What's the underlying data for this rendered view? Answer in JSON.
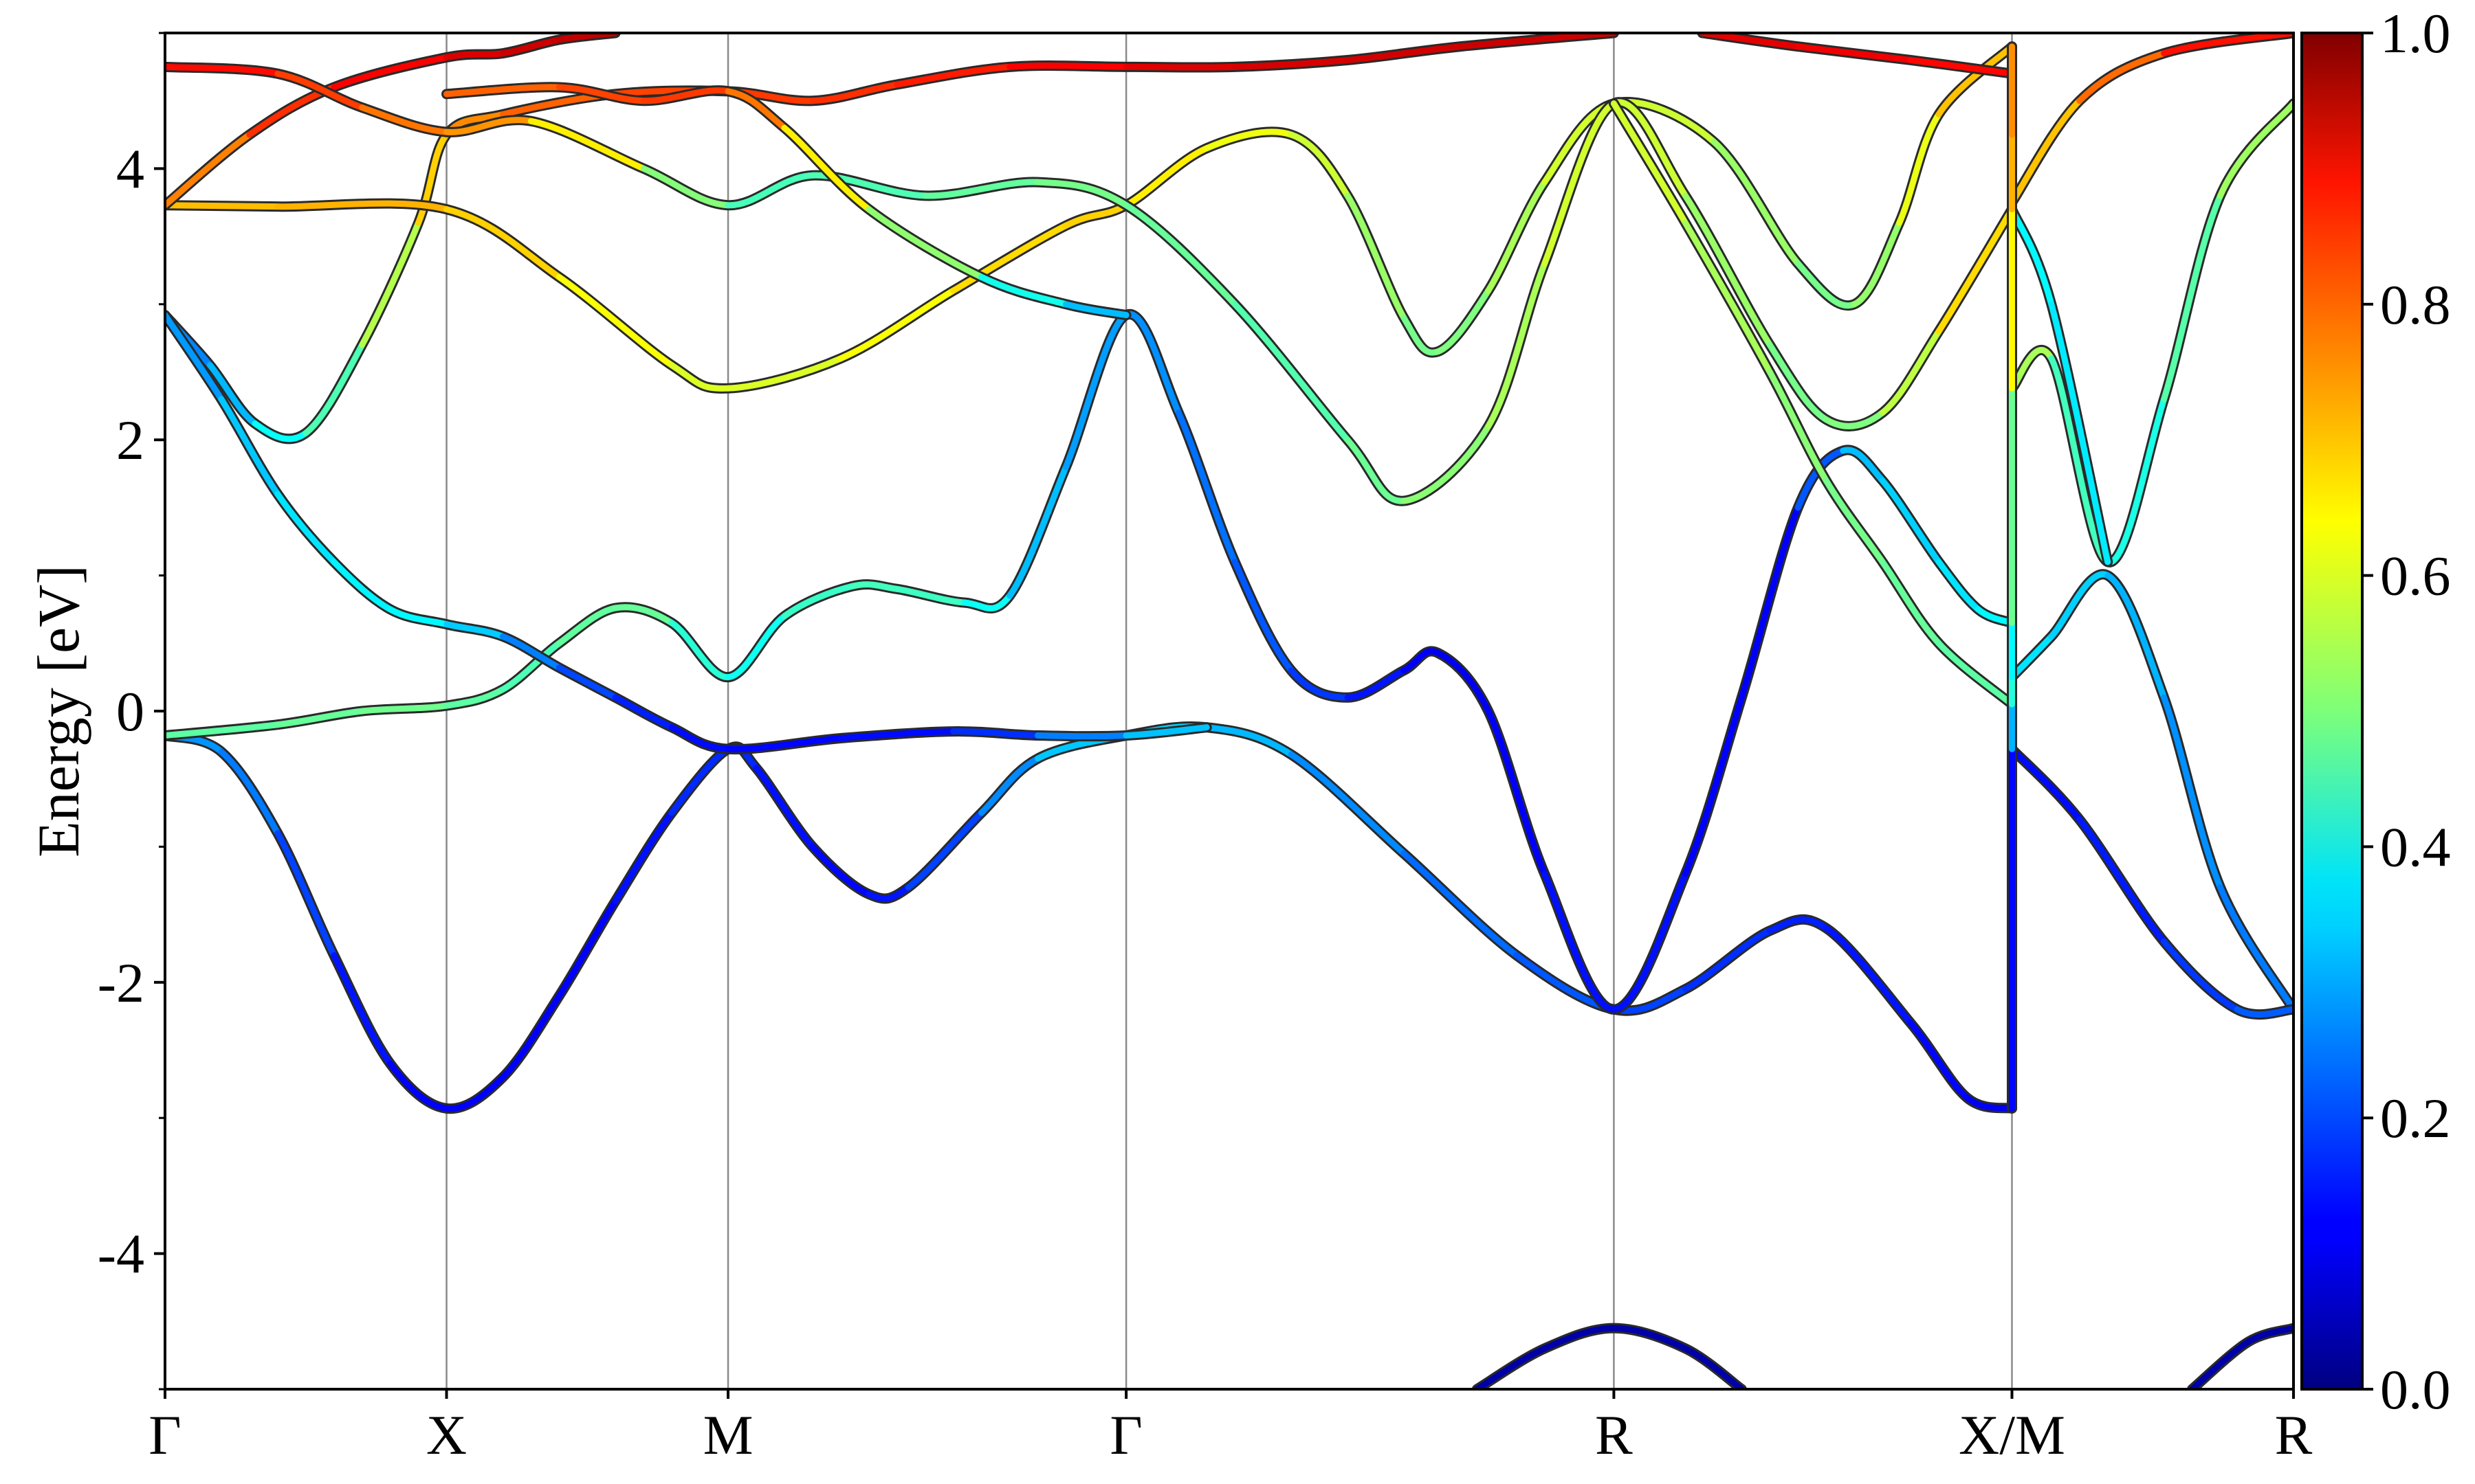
{
  "chart_data": {
    "type": "line",
    "title": "",
    "xlabel": "",
    "ylabel": "Energy [eV]",
    "ylim": [
      -5,
      5
    ],
    "y_ticks": [
      -4,
      -2,
      0,
      2,
      4
    ],
    "y_tick_labels": [
      "-4",
      "-2",
      "0",
      "2",
      "4"
    ],
    "k_points": [
      {
        "label": "Γ",
        "x": 0.0
      },
      {
        "label": "X",
        "x": 0.5
      },
      {
        "label": "M",
        "x": 1.0
      },
      {
        "label": "Γ",
        "x": 1.707
      },
      {
        "label": "R",
        "x": 2.573
      },
      {
        "label": "X/M",
        "x": 3.28
      },
      {
        "label": "R",
        "x": 3.78
      }
    ],
    "xlim": [
      0,
      3.78
    ],
    "colorbar": {
      "colormap": "jet",
      "range": [
        0.0,
        1.0
      ],
      "ticks": [
        0.0,
        0.2,
        0.4,
        0.6,
        0.8,
        1.0
      ],
      "tick_labels": [
        "0.0",
        "0.2",
        "0.4",
        "0.6",
        "0.8",
        "1.0"
      ]
    },
    "series": [
      {
        "points": [
          [
            0,
            -0.18
          ],
          [
            0.1,
            -0.3
          ],
          [
            0.2,
            -0.9
          ],
          [
            0.3,
            -1.8
          ],
          [
            0.4,
            -2.6
          ],
          [
            0.5,
            -2.93
          ],
          [
            0.6,
            -2.7
          ],
          [
            0.7,
            -2.1
          ],
          [
            0.8,
            -1.4
          ],
          [
            0.9,
            -0.75
          ],
          [
            1.0,
            -0.28
          ],
          [
            1.05,
            -0.42
          ],
          [
            1.15,
            -1.0
          ],
          [
            1.25,
            -1.35
          ],
          [
            1.32,
            -1.3
          ],
          [
            1.45,
            -0.75
          ],
          [
            1.55,
            -0.35
          ],
          [
            1.707,
            -0.18
          ],
          [
            1.85,
            -0.12
          ],
          [
            2.0,
            -0.32
          ],
          [
            2.2,
            -1.05
          ],
          [
            2.4,
            -1.8
          ],
          [
            2.573,
            -2.2
          ],
          [
            2.7,
            -2.05
          ],
          [
            2.85,
            -1.62
          ],
          [
            2.95,
            -1.6
          ],
          [
            3.1,
            -2.3
          ],
          [
            3.2,
            -2.85
          ],
          [
            3.28,
            -2.93
          ]
        ],
        "weight": [
          0.27,
          0.27,
          0.22,
          0.16,
          0.13,
          0.12,
          0.12,
          0.12,
          0.13,
          0.15,
          0.18,
          0.15,
          0.13,
          0.13,
          0.16,
          0.22,
          0.3,
          0.34,
          0.33,
          0.28,
          0.24,
          0.22,
          0.2,
          0.18,
          0.16,
          0.15,
          0.14,
          0.12,
          0.11
        ]
      },
      {
        "points": [
          [
            0,
            -0.18
          ],
          [
            0.2,
            -0.1
          ],
          [
            0.35,
            0.0
          ],
          [
            0.5,
            0.04
          ],
          [
            0.6,
            0.16
          ],
          [
            0.7,
            0.5
          ],
          [
            0.8,
            0.76
          ],
          [
            0.9,
            0.65
          ],
          [
            1.0,
            0.25
          ],
          [
            1.1,
            0.7
          ],
          [
            1.22,
            0.92
          ],
          [
            1.3,
            0.9
          ],
          [
            1.42,
            0.8
          ],
          [
            1.5,
            0.85
          ],
          [
            1.6,
            1.8
          ],
          [
            1.707,
            2.92
          ],
          [
            1.8,
            2.2
          ],
          [
            1.9,
            1.1
          ],
          [
            2.0,
            0.3
          ],
          [
            2.1,
            0.1
          ],
          [
            2.2,
            0.3
          ],
          [
            2.26,
            0.43
          ],
          [
            2.35,
            0.0
          ],
          [
            2.45,
            -1.2
          ],
          [
            2.573,
            -2.2
          ],
          [
            2.7,
            -1.2
          ],
          [
            2.8,
            0.1
          ],
          [
            2.9,
            1.5
          ],
          [
            2.98,
            1.92
          ],
          [
            3.05,
            1.7
          ],
          [
            3.15,
            1.1
          ],
          [
            3.22,
            0.75
          ],
          [
            3.28,
            0.65
          ]
        ],
        "weight": [
          0.46,
          0.47,
          0.48,
          0.49,
          0.44,
          0.46,
          0.48,
          0.47,
          0.36,
          0.42,
          0.44,
          0.44,
          0.43,
          0.34,
          0.28,
          0.28,
          0.25,
          0.22,
          0.2,
          0.16,
          0.13,
          0.11,
          0.11,
          0.13,
          0.15,
          0.13,
          0.12,
          0.12,
          0.3,
          0.32,
          0.34,
          0.36,
          0.38
        ]
      },
      {
        "points": [
          [
            0,
            2.92
          ],
          [
            0.08,
            2.55
          ],
          [
            0.16,
            2.12
          ],
          [
            0.25,
            2.05
          ],
          [
            0.35,
            2.7
          ],
          [
            0.45,
            3.6
          ],
          [
            0.5,
            4.25
          ],
          [
            0.6,
            4.4
          ],
          [
            0.8,
            4.55
          ],
          [
            1.0,
            4.57
          ],
          [
            1.15,
            4.5
          ],
          [
            1.3,
            4.62
          ],
          [
            1.5,
            4.75
          ],
          [
            1.707,
            4.75
          ],
          [
            1.9,
            4.75
          ],
          [
            2.1,
            4.8
          ],
          [
            2.3,
            4.9
          ],
          [
            2.573,
            5.0
          ]
        ],
        "weight": [
          0.24,
          0.27,
          0.34,
          0.42,
          0.48,
          0.62,
          0.72,
          0.76,
          0.8,
          0.82,
          0.82,
          0.84,
          0.86,
          0.9,
          0.91,
          0.92,
          0.92,
          0.93
        ]
      },
      {
        "points": [
          [
            0,
            2.92
          ],
          [
            0.1,
            2.3
          ],
          [
            0.2,
            1.6
          ],
          [
            0.3,
            1.1
          ],
          [
            0.4,
            0.75
          ],
          [
            0.5,
            0.64
          ],
          [
            0.6,
            0.55
          ],
          [
            0.7,
            0.32
          ],
          [
            0.8,
            0.1
          ],
          [
            0.9,
            -0.12
          ],
          [
            1.0,
            -0.28
          ],
          [
            1.2,
            -0.2
          ],
          [
            1.4,
            -0.15
          ],
          [
            1.55,
            -0.18
          ],
          [
            1.707,
            -0.18
          ],
          [
            1.85,
            -0.12
          ]
        ],
        "weight": [
          0.25,
          0.3,
          0.34,
          0.36,
          0.37,
          0.37,
          0.28,
          0.22,
          0.17,
          0.14,
          0.13,
          0.13,
          0.14,
          0.2,
          0.3,
          0.33
        ]
      },
      {
        "points": [
          [
            0,
            3.73
          ],
          [
            0.2,
            3.72
          ],
          [
            0.5,
            3.7
          ],
          [
            0.7,
            3.2
          ],
          [
            0.9,
            2.55
          ],
          [
            1.0,
            2.38
          ],
          [
            1.2,
            2.6
          ],
          [
            1.4,
            3.1
          ],
          [
            1.6,
            3.58
          ],
          [
            1.707,
            3.73
          ],
          [
            1.85,
            4.15
          ],
          [
            2.0,
            4.25
          ],
          [
            2.1,
            3.8
          ],
          [
            2.2,
            2.9
          ],
          [
            2.26,
            2.65
          ],
          [
            2.35,
            3.1
          ],
          [
            2.45,
            3.9
          ],
          [
            2.573,
            4.48
          ],
          [
            2.75,
            4.2
          ],
          [
            2.9,
            3.3
          ],
          [
            3.0,
            3.0
          ],
          [
            3.08,
            3.6
          ],
          [
            3.15,
            4.4
          ],
          [
            3.28,
            4.9
          ]
        ],
        "weight": [
          0.68,
          0.7,
          0.7,
          0.64,
          0.6,
          0.58,
          0.6,
          0.64,
          0.68,
          0.66,
          0.62,
          0.6,
          0.55,
          0.5,
          0.48,
          0.52,
          0.56,
          0.6,
          0.55,
          0.5,
          0.48,
          0.56,
          0.65,
          0.72
        ]
      },
      {
        "points": [
          [
            0,
            3.73
          ],
          [
            0.15,
            4.25
          ],
          [
            0.3,
            4.6
          ],
          [
            0.5,
            4.82
          ],
          [
            0.6,
            4.85
          ],
          [
            0.7,
            4.95
          ],
          [
            0.8,
            5.0
          ]
        ],
        "weight": [
          0.7,
          0.8,
          0.86,
          0.9,
          0.92,
          0.93,
          0.94
        ]
      },
      {
        "points": [
          [
            0,
            4.75
          ],
          [
            0.2,
            4.7
          ],
          [
            0.35,
            4.45
          ],
          [
            0.5,
            4.27
          ],
          [
            0.65,
            4.35
          ],
          [
            0.85,
            4.0
          ],
          [
            1.0,
            3.73
          ],
          [
            1.15,
            3.95
          ],
          [
            1.35,
            3.8
          ],
          [
            1.55,
            3.9
          ],
          [
            1.707,
            3.73
          ],
          [
            1.9,
            3.0
          ],
          [
            2.1,
            2.0
          ],
          [
            2.2,
            1.55
          ],
          [
            2.35,
            2.1
          ],
          [
            2.45,
            3.3
          ],
          [
            2.573,
            4.48
          ],
          [
            2.7,
            3.8
          ],
          [
            2.85,
            2.7
          ],
          [
            2.95,
            2.15
          ],
          [
            3.05,
            2.2
          ],
          [
            3.15,
            2.8
          ],
          [
            3.28,
            3.7
          ]
        ],
        "weight": [
          0.88,
          0.85,
          0.78,
          0.74,
          0.72,
          0.56,
          0.45,
          0.44,
          0.46,
          0.48,
          0.5,
          0.45,
          0.46,
          0.5,
          0.52,
          0.56,
          0.6,
          0.55,
          0.5,
          0.48,
          0.52,
          0.6,
          0.72
        ]
      },
      {
        "points": [
          [
            0.5,
            4.55
          ],
          [
            0.7,
            4.6
          ],
          [
            0.85,
            4.5
          ],
          [
            1.0,
            4.57
          ],
          [
            1.1,
            4.3
          ],
          [
            1.25,
            3.7
          ],
          [
            1.45,
            3.2
          ],
          [
            1.6,
            3.0
          ],
          [
            1.707,
            2.92
          ]
        ],
        "weight": [
          0.76,
          0.8,
          0.82,
          0.82,
          0.7,
          0.58,
          0.45,
          0.34,
          0.28
        ]
      },
      {
        "points": [
          [
            2.573,
            4.48
          ],
          [
            2.7,
            3.6
          ],
          [
            2.85,
            2.5
          ],
          [
            2.95,
            1.7
          ],
          [
            3.05,
            1.1
          ],
          [
            3.15,
            0.5
          ],
          [
            3.28,
            0.05
          ]
        ],
        "weight": [
          0.6,
          0.56,
          0.52,
          0.5,
          0.48,
          0.47,
          0.46
        ]
      },
      {
        "points": [
          [
            3.28,
            0.25
          ],
          [
            3.35,
            0.55
          ],
          [
            3.45,
            1.0
          ],
          [
            3.55,
            0.1
          ],
          [
            3.65,
            -1.3
          ],
          [
            3.78,
            -2.2
          ]
        ],
        "weight": [
          0.36,
          0.34,
          0.32,
          0.28,
          0.25,
          0.24
        ]
      },
      {
        "points": [
          [
            3.28,
            -0.28
          ],
          [
            3.4,
            -0.8
          ],
          [
            3.55,
            -1.7
          ],
          [
            3.68,
            -2.2
          ],
          [
            3.78,
            -2.2
          ]
        ],
        "weight": [
          0.13,
          0.14,
          0.16,
          0.2,
          0.23
        ]
      },
      {
        "points": [
          [
            3.28,
            2.38
          ],
          [
            3.35,
            2.6
          ],
          [
            3.45,
            1.1
          ],
          [
            3.55,
            2.3
          ],
          [
            3.65,
            3.8
          ],
          [
            3.78,
            4.48
          ]
        ],
        "weight": [
          0.58,
          0.5,
          0.38,
          0.42,
          0.5,
          0.56
        ]
      },
      {
        "points": [
          [
            3.28,
            3.7
          ],
          [
            3.35,
            3.0
          ],
          [
            3.45,
            1.1
          ]
        ],
        "weight": [
          0.38,
          0.36,
          0.35
        ]
      },
      {
        "points": [
          [
            3.28,
            3.75
          ],
          [
            3.4,
            4.5
          ],
          [
            3.55,
            4.85
          ],
          [
            3.78,
            5.0
          ]
        ],
        "weight": [
          0.65,
          0.72,
          0.82,
          0.9
        ]
      },
      {
        "points": [
          [
            2.73,
            5.0
          ],
          [
            2.9,
            4.9
          ],
          [
            3.1,
            4.8
          ],
          [
            3.28,
            4.7
          ]
        ],
        "weight": [
          0.9,
          0.9,
          0.88,
          0.86
        ]
      },
      {
        "points": [
          [
            2.33,
            -5.0
          ],
          [
            2.45,
            -4.7
          ],
          [
            2.573,
            -4.55
          ],
          [
            2.7,
            -4.7
          ],
          [
            2.8,
            -5.0
          ]
        ],
        "weight": [
          0.04,
          0.04,
          0.04,
          0.04,
          0.04
        ]
      },
      {
        "points": [
          [
            3.6,
            -5.0
          ],
          [
            3.7,
            -4.65
          ],
          [
            3.78,
            -4.55
          ]
        ],
        "weight": [
          0.04,
          0.04,
          0.04
        ]
      },
      {
        "points": [
          [
            3.28,
            -2.93
          ],
          [
            3.28,
            -0.28
          ],
          [
            3.28,
            0.05
          ],
          [
            3.28,
            0.25
          ],
          [
            3.28,
            0.65
          ],
          [
            3.28,
            2.38
          ],
          [
            3.28,
            3.7
          ],
          [
            3.28,
            4.25
          ],
          [
            3.28,
            4.9
          ]
        ],
        "weight": [
          0.12,
          0.14,
          0.46,
          0.36,
          0.38,
          0.58,
          0.68,
          0.72,
          0.75
        ]
      }
    ]
  }
}
